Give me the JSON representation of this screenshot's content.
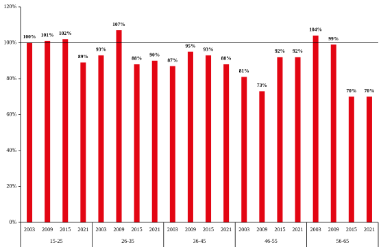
{
  "chart_data": {
    "type": "bar",
    "categories": [
      "2003",
      "2009",
      "2015",
      "2021",
      "2003",
      "2009",
      "2015",
      "2021",
      "2003",
      "2009",
      "2015",
      "2021",
      "2003",
      "2009",
      "2015",
      "2021",
      "2003",
      "2009",
      "2015",
      "2021"
    ],
    "groups": [
      "15-25",
      "26-35",
      "36-45",
      "46-55",
      "56-65"
    ],
    "values": [
      100,
      101,
      102,
      89,
      93,
      107,
      88,
      90,
      87,
      95,
      93,
      88,
      81,
      73,
      92,
      92,
      104,
      99,
      70,
      70
    ],
    "value_labels": [
      "100%",
      "101%",
      "102%",
      "89%",
      "93%",
      "107%",
      "88%",
      "90%",
      "87%",
      "95%",
      "93%",
      "88%",
      "81%",
      "73%",
      "92%",
      "92%",
      "104%",
      "99%",
      "70%",
      "70%"
    ],
    "color": "#e30613",
    "ylim": [
      0,
      120
    ],
    "yticks": [
      {
        "value": 0,
        "label": "0%"
      },
      {
        "value": 20,
        "label": "20%"
      },
      {
        "value": 40,
        "label": "40%"
      },
      {
        "value": 60,
        "label": "60%"
      },
      {
        "value": 80,
        "label": "80%"
      },
      {
        "value": 100,
        "label": "100%"
      },
      {
        "value": 120,
        "label": "120%"
      }
    ],
    "reference_line": 100
  }
}
